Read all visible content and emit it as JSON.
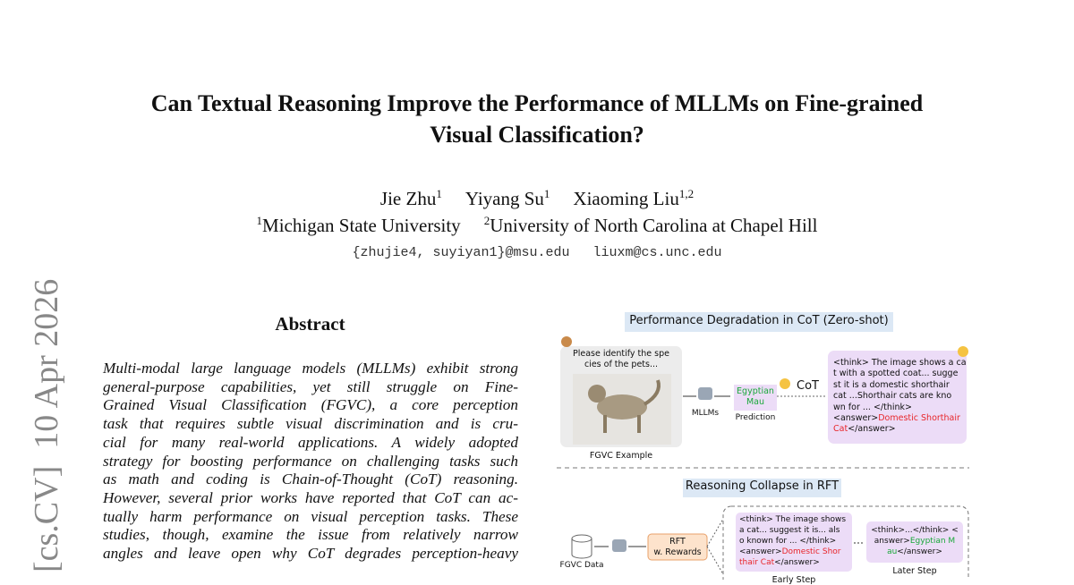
{
  "header": {
    "title_lines": [
      "Can Textual Reasoning Improve the Performance of MLLMs on Fine-grained",
      "Visual Classification?"
    ],
    "authors": [
      {
        "name": "Jie Zhu",
        "sup": "1"
      },
      {
        "name": "Yiyang Su",
        "sup": "1"
      },
      {
        "name": "Xiaoming Liu",
        "sup": "1,2"
      }
    ],
    "affiliations": [
      {
        "sup": "1",
        "name": "Michigan State University"
      },
      {
        "sup": "2",
        "name": "University of North Carolina at Chapel Hill"
      }
    ],
    "emails": [
      "{zhujie4, suyiyan1}@msu.edu",
      "liuxm@cs.unc.edu"
    ]
  },
  "side_stamp": "[cs.CV]  10 Apr 2026",
  "abstract": {
    "heading": "Abstract",
    "lines": [
      "Multi-modal large language models (MLLMs) exhibit strong",
      "general-purpose capabilities, yet still struggle on Fine-",
      "Grained Visual Classification (FGVC), a core perception",
      "task that requires subtle visual discrimination and is cru-",
      "cial for many real-world applications.  A widely adopted",
      "strategy for boosting performance on challenging tasks such",
      "as math and coding is Chain-of-Thought (CoT) reasoning.",
      "However, several prior works have reported that CoT can ac-",
      "tually harm performance on visual perception tasks. These",
      "studies, though, examine the issue from relatively narrow",
      "angles and leave open why CoT degrades perception-heavy"
    ]
  },
  "figure": {
    "top_title": "Performance Degradation in CoT (Zero-shot)",
    "prompt_lines": [
      "Please identify the spe",
      "cies of the pets..."
    ],
    "example_label": "FGVC Example",
    "model_label": "MLLMs",
    "prediction_lines": [
      "Egyptian",
      "Mau"
    ],
    "prediction_color": "#1aa83a",
    "prediction_label": "Prediction",
    "cot_label": "CoT",
    "cot_lines": [
      [
        "<think> The image shows a ca"
      ],
      [
        "t with a spotted coat... sugge"
      ],
      [
        "st it is a domestic shorthair"
      ],
      [
        "cat ...Shorthair cats are kno"
      ],
      [
        "wn for ... </think>"
      ],
      [
        "<answer>",
        {
          "text": "Domestic Shorthair",
          "color": "#e8262b"
        }
      ],
      [
        {
          "text": "Cat",
          "color": "#e8262b"
        },
        "</answer>"
      ]
    ],
    "bottom_title": "Reasoning Collapse in RFT",
    "data_label": "FGVC Data",
    "rft_lines": [
      "RFT",
      "w. Rewards"
    ],
    "early_lines": [
      [
        "<think> The image shows"
      ],
      [
        "a cat... suggest it is... als"
      ],
      [
        "o known for ... </think>"
      ],
      [
        "<answer>",
        {
          "text": "Domestic Shor",
          "color": "#e8262b"
        }
      ],
      [
        {
          "text": "thair Cat",
          "color": "#e8262b"
        },
        "</answer>"
      ]
    ],
    "later_lines": [
      [
        "<think>...</think> <"
      ],
      [
        "answer>",
        {
          "text": "Egyptian M",
          "color": "#1aa83a"
        }
      ],
      [
        {
          "text": "au",
          "color": "#1aa83a"
        },
        "</answer>"
      ]
    ],
    "later_label": "Later Step",
    "early_label": "Early Step"
  }
}
